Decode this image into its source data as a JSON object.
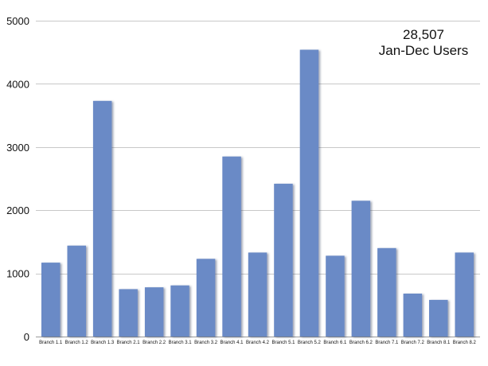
{
  "chart_data": {
    "type": "bar",
    "categories": [
      "Branch 1.1",
      "Branch 1.2",
      "Branch 1.3",
      "Branch 2.1",
      "Branch 2.2",
      "Branch 3.1",
      "Branch 3.2",
      "Branch 4.1",
      "Branch 4.2",
      "Branch 5.1",
      "Branch 5.2",
      "Branch 6.1",
      "Branch 6.2",
      "Branch 7.1",
      "Branch 7.2",
      "Branch 8.1",
      "Branch 8.2"
    ],
    "values": [
      1170,
      1440,
      3730,
      750,
      780,
      810,
      1230,
      2850,
      1330,
      2420,
      4540,
      1280,
      2150,
      1400,
      680,
      580,
      1330
    ],
    "ylim": [
      0,
      5000
    ],
    "yticks": [
      0,
      1000,
      2000,
      3000,
      4000,
      5000
    ],
    "ytick_labels": [
      "0",
      "1000",
      "2000",
      "3000",
      "4000",
      "5000"
    ],
    "annotation": [
      "28,507",
      "Jan-Dec Users"
    ],
    "grid": true,
    "colors": {
      "bar": "#6b8ac6",
      "bar_shadow": "#3a4f7a"
    }
  }
}
